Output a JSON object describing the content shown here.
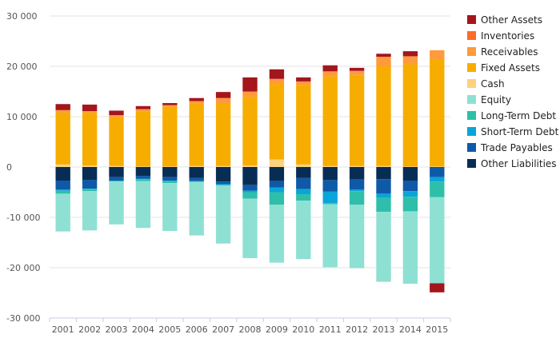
{
  "chart_data": {
    "type": "bar",
    "stacked": true,
    "title": "",
    "xlabel": "",
    "ylabel": "",
    "ylim": [
      -30000,
      30000
    ],
    "yticks": [
      30000,
      20000,
      10000,
      0,
      -10000,
      -20000,
      -30000
    ],
    "ytick_labels": [
      "30 000",
      "20 000",
      "10 000",
      "0",
      "-10 000",
      "-20 000",
      "-30 000"
    ],
    "grid": "horizontal",
    "legend_position": "right",
    "categories": [
      "2001",
      "2002",
      "2003",
      "2004",
      "2005",
      "2006",
      "2007",
      "2008",
      "2009",
      "2010",
      "2011",
      "2012",
      "2013",
      "2014",
      "2015"
    ],
    "series": [
      {
        "name": "Other Assets",
        "color": "#a4161c",
        "values": [
          1200,
          1300,
          900,
          600,
          400,
          600,
          1200,
          2800,
          1900,
          800,
          1200,
          600,
          600,
          1000,
          -1800
        ]
      },
      {
        "name": "Inventories",
        "color": "#ff6a2b",
        "values": [
          0,
          0,
          0,
          0,
          0,
          0,
          0,
          0,
          0,
          0,
          0,
          0,
          0,
          0,
          0
        ]
      },
      {
        "name": "Receivables",
        "color": "#ff9a3d",
        "values": [
          500,
          300,
          400,
          400,
          300,
          500,
          1000,
          1100,
          1000,
          700,
          1000,
          800,
          1900,
          1600,
          1700
        ]
      },
      {
        "name": "Fixed Assets",
        "color": "#f7ad00",
        "values": [
          10300,
          10500,
          9700,
          11000,
          11900,
          12400,
          12500,
          13600,
          15000,
          15800,
          17800,
          18100,
          19800,
          20300,
          21400
        ]
      },
      {
        "name": "Cash",
        "color": "#fdd27e",
        "values": [
          500,
          300,
          200,
          100,
          100,
          200,
          200,
          300,
          1500,
          500,
          200,
          200,
          200,
          100,
          100
        ]
      },
      {
        "name": "Equity",
        "color": "#8ee0d3",
        "values": [
          -7500,
          -7800,
          -8500,
          -9300,
          -9500,
          -10600,
          -11500,
          -11800,
          -11500,
          -11600,
          -12500,
          -12600,
          -13900,
          -14400,
          -17100
        ]
      },
      {
        "name": "Long-Term Debt",
        "color": "#2ebfaa",
        "values": [
          -600,
          -400,
          -100,
          -400,
          -400,
          -100,
          -200,
          -1300,
          -2500,
          -1300,
          -200,
          -2700,
          -2800,
          -2900,
          -3100
        ]
      },
      {
        "name": "Short-Term Debt",
        "color": "#0aa5d8",
        "values": [
          -200,
          -100,
          -100,
          -100,
          -100,
          -100,
          -100,
          -300,
          -900,
          -1000,
          -2300,
          -300,
          -800,
          -1100,
          -900
        ]
      },
      {
        "name": "Trade Payables",
        "color": "#0f5aa8",
        "values": [
          -1800,
          -1700,
          -700,
          -500,
          -700,
          -600,
          -500,
          -1100,
          -1300,
          -2200,
          -2300,
          -2000,
          -2900,
          -2100,
          -1900
        ]
      },
      {
        "name": "Other Liabilities",
        "color": "#082d55",
        "values": [
          -2700,
          -2600,
          -2000,
          -1800,
          -2000,
          -2200,
          -2900,
          -3600,
          -2800,
          -2200,
          -2600,
          -2500,
          -2400,
          -2700,
          -100
        ]
      }
    ]
  }
}
